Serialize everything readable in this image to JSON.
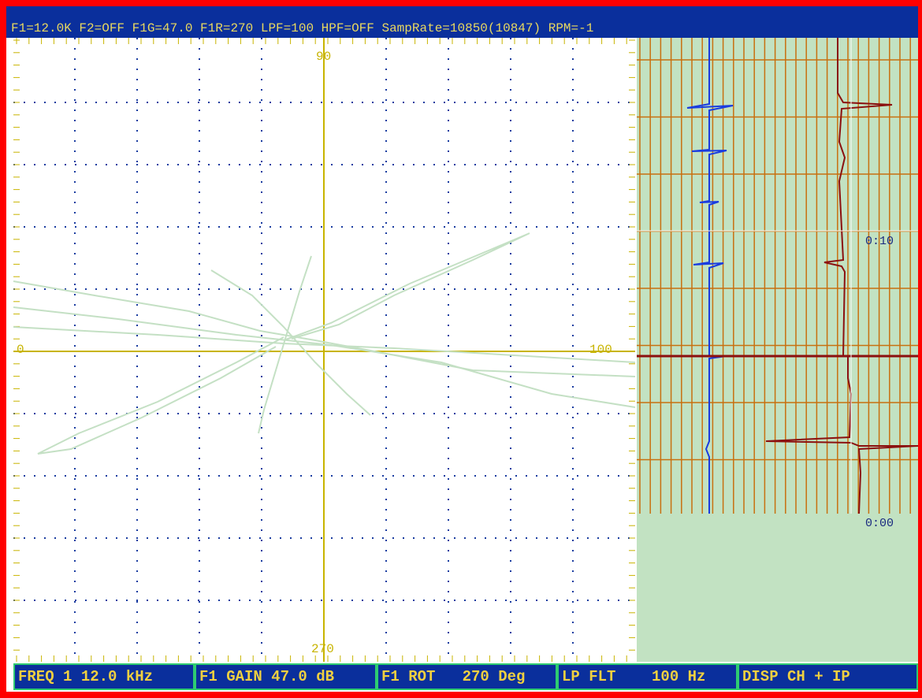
{
  "header": {
    "status": "F1=12.0K F2=OFF F1G=47.0 F1R=270 LPF=100 HPF=OFF SampRate=10850(10847) RPM=-1"
  },
  "plane": {
    "label_top": "90",
    "label_left": "0",
    "label_right": "100",
    "label_bottom": "270"
  },
  "strip": {
    "time_labels": [
      "0:10",
      "0:00"
    ]
  },
  "menu": {
    "buttons": [
      "FREQ 1 12.0 kHz",
      "F1 GAIN 47.0 dB",
      "F1 ROT   270 Deg",
      "LP FLT    100 Hz",
      "DISP CH + IP"
    ]
  }
}
